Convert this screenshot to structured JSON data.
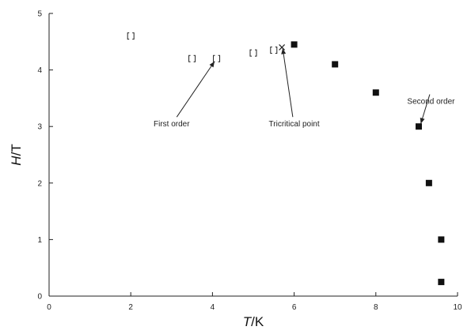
{
  "chart_data": {
    "type": "scatter",
    "xlabel_italic": "T",
    "xlabel_unit": "/K",
    "ylabel_italic": "H",
    "ylabel_unit": "/T",
    "xlim": [
      0,
      10
    ],
    "ylim": [
      0,
      5
    ],
    "x_ticks": [
      "0",
      "2",
      "4",
      "6",
      "8",
      "10"
    ],
    "y_ticks": [
      "0",
      "1",
      "2",
      "3",
      "4",
      "5"
    ],
    "grid": false,
    "series": [
      {
        "marker": "open-square",
        "color": "#222222",
        "points": [
          {
            "x": 2.0,
            "y": 4.6
          },
          {
            "x": 3.5,
            "y": 4.2
          },
          {
            "x": 4.1,
            "y": 4.2
          },
          {
            "x": 5.0,
            "y": 4.3
          },
          {
            "x": 5.5,
            "y": 4.35
          }
        ]
      },
      {
        "marker": "cross",
        "color": "#222222",
        "points": [
          {
            "x": 5.7,
            "y": 4.4
          }
        ]
      },
      {
        "marker": "filled-square",
        "color": "#111111",
        "points": [
          {
            "x": 6.0,
            "y": 4.45
          },
          {
            "x": 7.0,
            "y": 4.1
          },
          {
            "x": 8.0,
            "y": 3.6
          },
          {
            "x": 9.05,
            "y": 3.0
          },
          {
            "x": 9.3,
            "y": 2.0
          },
          {
            "x": 9.6,
            "y": 1.0
          },
          {
            "x": 9.6,
            "y": 0.25
          }
        ]
      }
    ],
    "annotations": [
      {
        "text": "First order",
        "text_x": 3.0,
        "text_y": 3.0,
        "target_x": 4.05,
        "target_y": 4.15
      },
      {
        "text": "Tricritical point",
        "text_x": 6.0,
        "text_y": 3.0,
        "target_x": 5.72,
        "target_y": 4.38
      },
      {
        "text": "Second order",
        "text_x": 9.35,
        "text_y": 3.4,
        "target_x": 9.1,
        "target_y": 3.05
      }
    ]
  }
}
